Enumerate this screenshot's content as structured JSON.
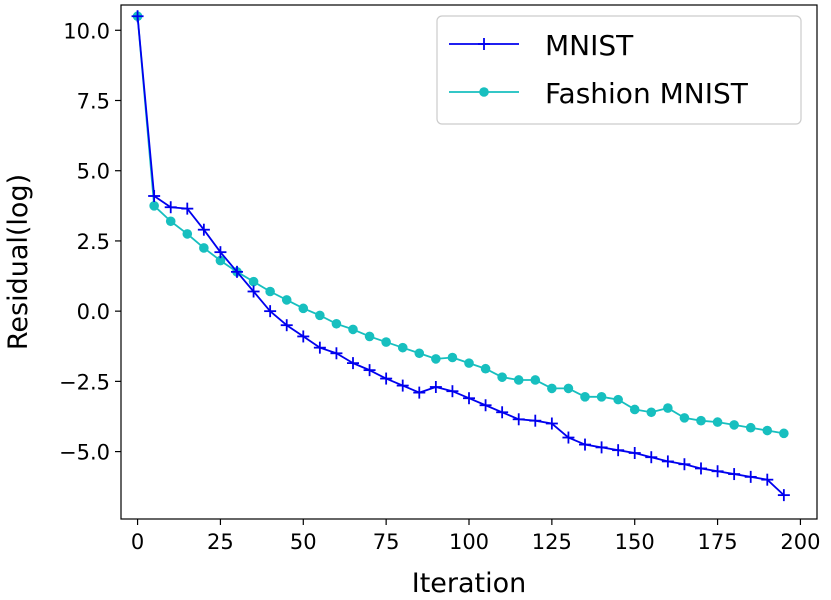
{
  "chart_data": {
    "type": "line",
    "xlabel": "Iteration",
    "ylabel": "Residual(log)",
    "xlim": [
      -5,
      205
    ],
    "ylim": [
      -7.4,
      10.9
    ],
    "xticks": [
      0,
      25,
      50,
      75,
      100,
      125,
      150,
      175,
      200
    ],
    "xtick_labels": [
      "0",
      "25",
      "50",
      "75",
      "100",
      "125",
      "150",
      "175",
      "200"
    ],
    "yticks": [
      10.0,
      7.5,
      5.0,
      2.5,
      0.0,
      -2.5,
      -5.0
    ],
    "ytick_labels": [
      "10.0",
      "7.5",
      "5.0",
      "2.5",
      "0.0",
      "−2.5",
      "−5.0"
    ],
    "legend_position": "top-right",
    "series": [
      {
        "name": "MNIST",
        "color": "#0000ee",
        "marker": "plus",
        "x": [
          0,
          5,
          10,
          15,
          20,
          25,
          30,
          35,
          40,
          45,
          50,
          55,
          60,
          65,
          70,
          75,
          80,
          85,
          90,
          95,
          100,
          105,
          110,
          115,
          120,
          125,
          130,
          135,
          140,
          145,
          150,
          155,
          160,
          165,
          170,
          175,
          180,
          185,
          190,
          195
        ],
        "y": [
          10.5,
          4.1,
          3.7,
          3.65,
          2.9,
          2.1,
          1.4,
          0.7,
          0.0,
          -0.5,
          -0.9,
          -1.3,
          -1.5,
          -1.85,
          -2.1,
          -2.4,
          -2.65,
          -2.9,
          -2.7,
          -2.85,
          -3.1,
          -3.35,
          -3.6,
          -3.85,
          -3.9,
          -4.0,
          -4.5,
          -4.75,
          -4.85,
          -4.95,
          -5.05,
          -5.2,
          -5.35,
          -5.45,
          -5.6,
          -5.7,
          -5.8,
          -5.9,
          -6.0,
          -6.55
        ]
      },
      {
        "name": "Fashion MNIST",
        "color": "#17bfbf",
        "marker": "circle",
        "x": [
          0,
          5,
          10,
          15,
          20,
          25,
          30,
          35,
          40,
          45,
          50,
          55,
          60,
          65,
          70,
          75,
          80,
          85,
          90,
          95,
          100,
          105,
          110,
          115,
          120,
          125,
          130,
          135,
          140,
          145,
          150,
          155,
          160,
          165,
          170,
          175,
          180,
          185,
          190,
          195
        ],
        "y": [
          10.5,
          3.75,
          3.2,
          2.75,
          2.25,
          1.8,
          1.4,
          1.05,
          0.7,
          0.4,
          0.1,
          -0.15,
          -0.45,
          -0.65,
          -0.9,
          -1.1,
          -1.3,
          -1.5,
          -1.7,
          -1.65,
          -1.85,
          -2.05,
          -2.35,
          -2.45,
          -2.45,
          -2.75,
          -2.75,
          -3.05,
          -3.05,
          -3.15,
          -3.5,
          -3.6,
          -3.45,
          -3.8,
          -3.9,
          -3.95,
          -4.05,
          -4.15,
          -4.25,
          -4.35
        ]
      }
    ]
  }
}
